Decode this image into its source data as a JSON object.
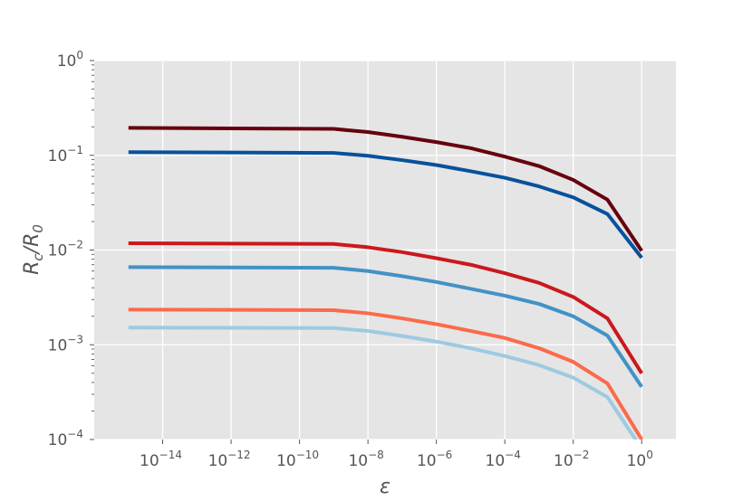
{
  "chart_data": {
    "type": "line",
    "title": "",
    "xlabel": "ε",
    "ylabel_base": "R",
    "ylabel_sub1": "c",
    "ylabel_mid": "/R",
    "ylabel_sub2": "0",
    "xscale": "log",
    "yscale": "log",
    "xlim": [
      1e-16,
      10
    ],
    "ylim": [
      0.0001,
      1
    ],
    "grid": true,
    "legend": "none",
    "xticks": [
      {
        "value": 1e-14,
        "base": "10",
        "exp": "−14"
      },
      {
        "value": 1e-12,
        "base": "10",
        "exp": "−12"
      },
      {
        "value": 1e-10,
        "base": "10",
        "exp": "−10"
      },
      {
        "value": 1e-08,
        "base": "10",
        "exp": "−8"
      },
      {
        "value": 1e-06,
        "base": "10",
        "exp": "−6"
      },
      {
        "value": 0.0001,
        "base": "10",
        "exp": "−4"
      },
      {
        "value": 0.01,
        "base": "10",
        "exp": "−2"
      },
      {
        "value": 1,
        "base": "10",
        "exp": "0"
      }
    ],
    "yticks": [
      {
        "value": 1,
        "base": "10",
        "exp": "0"
      },
      {
        "value": 0.1,
        "base": "10",
        "exp": "−1"
      },
      {
        "value": 0.01,
        "base": "10",
        "exp": "−2"
      },
      {
        "value": 0.001,
        "base": "10",
        "exp": "−3"
      },
      {
        "value": 0.0001,
        "base": "10",
        "exp": "−4"
      }
    ],
    "x": [
      1e-15,
      1e-09,
      1e-08,
      1e-07,
      1e-06,
      1e-05,
      0.0001,
      0.001,
      0.01,
      0.1,
      1
    ],
    "series": [
      {
        "color": "#67000d",
        "values": [
          0.195,
          0.19,
          0.176,
          0.157,
          0.138,
          0.119,
          0.097,
          0.077,
          0.055,
          0.034,
          0.0098
        ]
      },
      {
        "color": "#08519c",
        "values": [
          0.108,
          0.106,
          0.099,
          0.089,
          0.079,
          0.068,
          0.058,
          0.047,
          0.036,
          0.024,
          0.0083
        ]
      },
      {
        "color": "#cb181d",
        "values": [
          0.0118,
          0.0116,
          0.0107,
          0.0095,
          0.0082,
          0.007,
          0.0057,
          0.0045,
          0.0032,
          0.0019,
          0.0005
        ]
      },
      {
        "color": "#4292c6",
        "values": [
          0.0066,
          0.0065,
          0.006,
          0.0053,
          0.0046,
          0.0039,
          0.0033,
          0.0027,
          0.002,
          0.00125,
          0.00036
        ]
      },
      {
        "color": "#fb6a4a",
        "values": [
          0.00235,
          0.00232,
          0.00215,
          0.0019,
          0.00165,
          0.0014,
          0.00118,
          0.00092,
          0.00066,
          0.00039,
          0.0001
        ]
      },
      {
        "color": "#9ecae1",
        "values": [
          0.00152,
          0.0015,
          0.0014,
          0.00124,
          0.00108,
          0.00092,
          0.00076,
          0.00061,
          0.00045,
          0.00028,
          8e-05
        ]
      }
    ]
  }
}
